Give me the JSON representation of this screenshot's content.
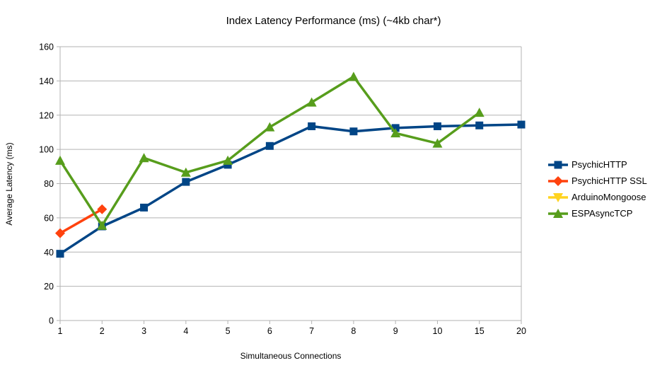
{
  "title": "Index Latency Performance (ms) (~4kb char*)",
  "chart_data": {
    "type": "line",
    "title": "Index Latency Performance (ms) (~4kb char*)",
    "xlabel": "Simultaneous Connections",
    "ylabel": "Average Latency (ms)",
    "categories": [
      "1",
      "2",
      "3",
      "4",
      "5",
      "6",
      "7",
      "8",
      "9",
      "10",
      "15",
      "20"
    ],
    "ylim": [
      0,
      160
    ],
    "yticks": [
      0,
      20,
      40,
      60,
      80,
      100,
      120,
      140,
      160
    ],
    "grid": "horizontal",
    "legend_position": "right",
    "grid_color": "#b3b3b3",
    "axis_color": "#b3b3b3",
    "series": [
      {
        "name": "PsychicHTTP",
        "color": "#004586",
        "marker": "square",
        "values": [
          39,
          55,
          66,
          81,
          91,
          102,
          113.5,
          110.5,
          112.5,
          113.5,
          114,
          114.5
        ]
      },
      {
        "name": "PsychicHTTP SSL",
        "color": "#FF420E",
        "marker": "diamond",
        "values": [
          51,
          65,
          null,
          null,
          null,
          null,
          null,
          null,
          null,
          null,
          null,
          null
        ]
      },
      {
        "name": "ArduinoMongoose",
        "color": "#FFD320",
        "marker": "triangle-down",
        "values": [
          null,
          null,
          null,
          null,
          null,
          null,
          null,
          null,
          null,
          null,
          null,
          null
        ]
      },
      {
        "name": "ESPAsyncTCP",
        "color": "#579D1C",
        "marker": "triangle-up",
        "values": [
          93.5,
          55.5,
          95,
          86.5,
          93.5,
          113,
          127.5,
          142.5,
          109.5,
          103.5,
          121.5,
          null
        ]
      }
    ]
  }
}
